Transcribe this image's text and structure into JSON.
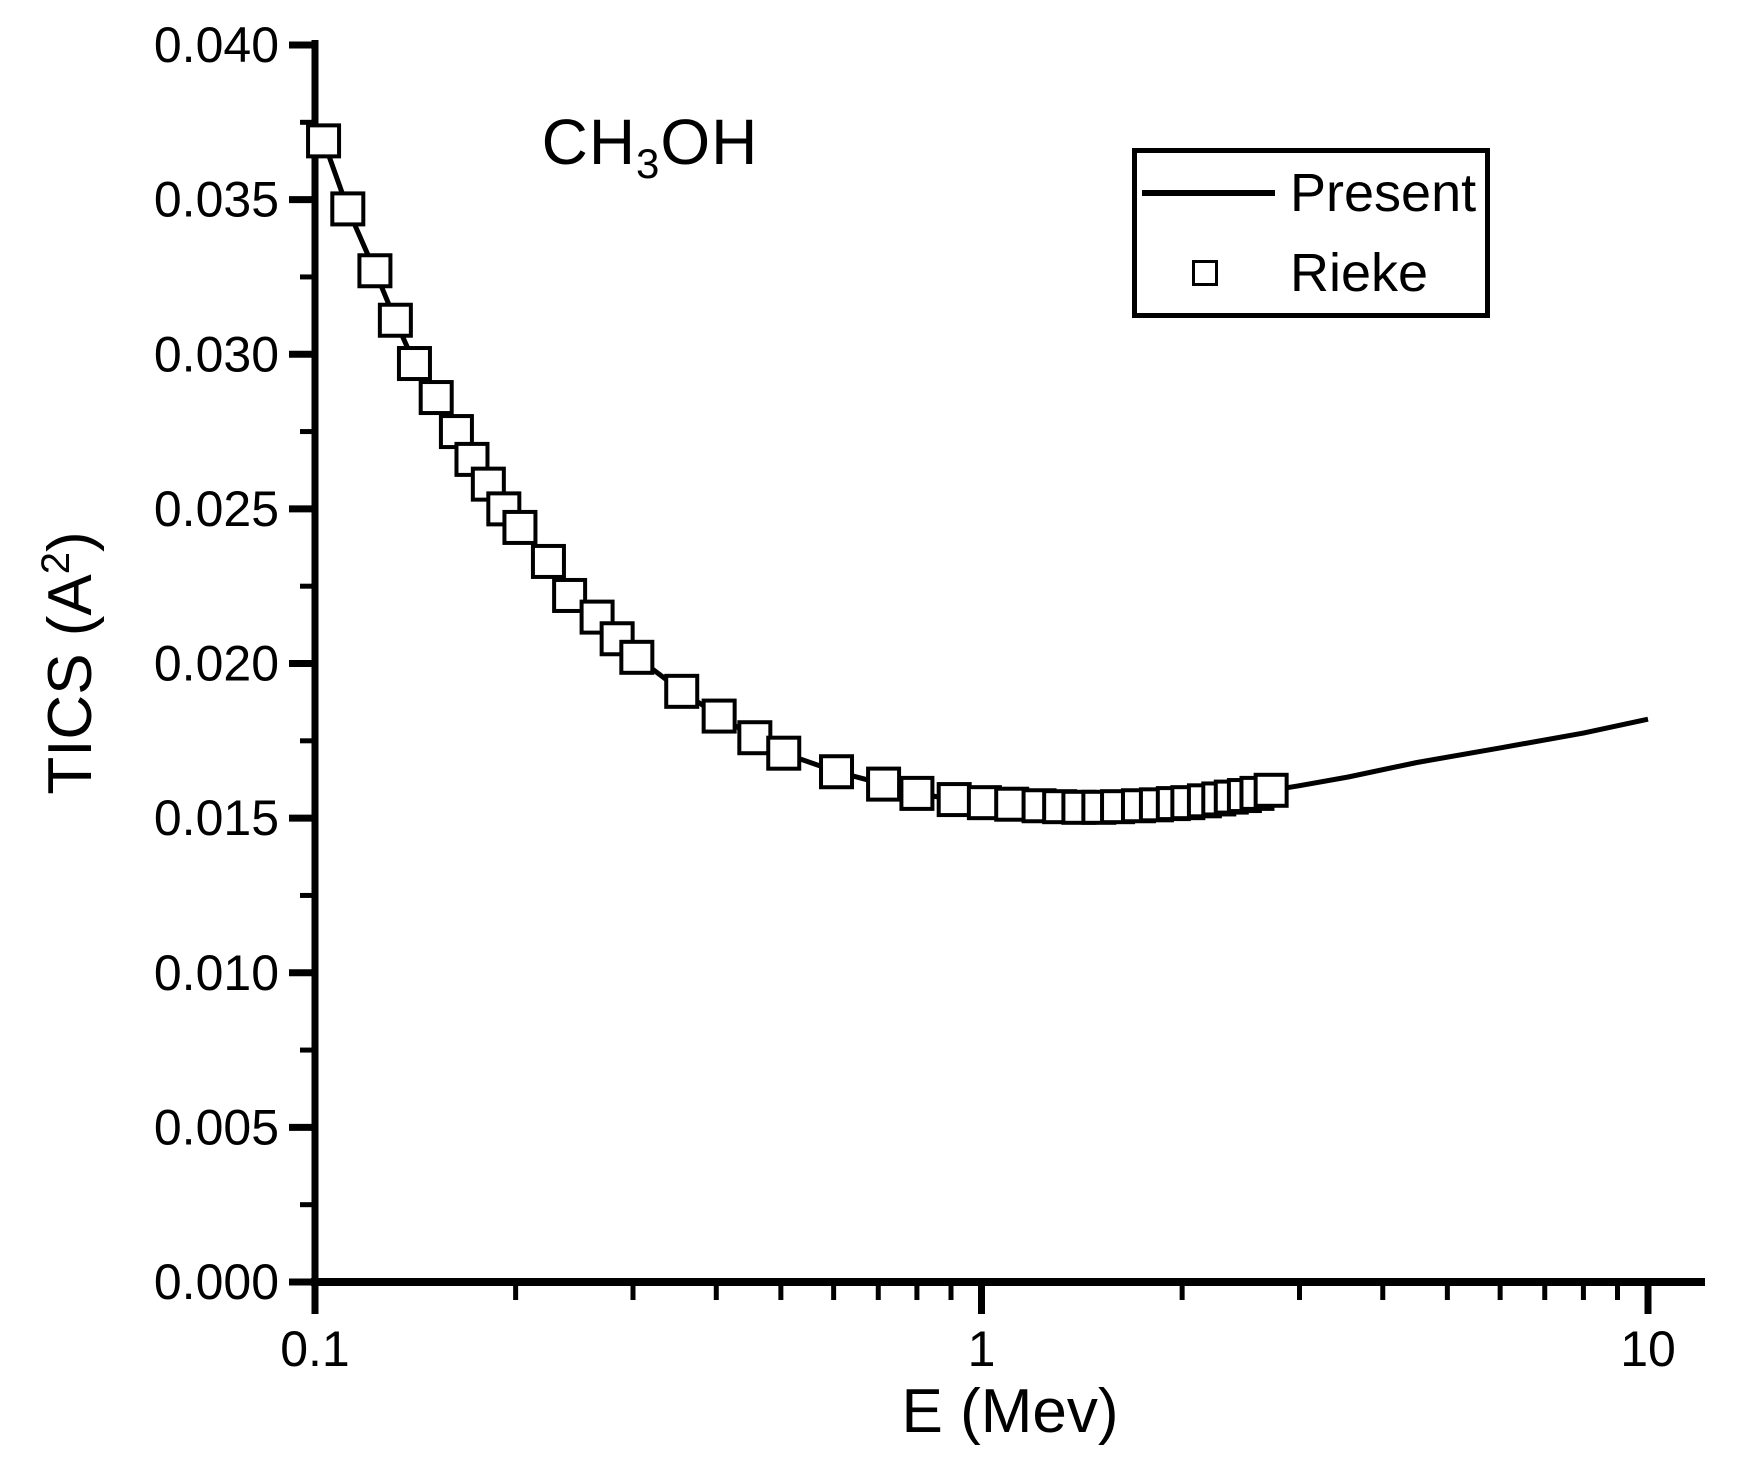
{
  "figure": {
    "background": "#ffffff",
    "ink": "#000000",
    "annotation": {
      "prefix": "CH",
      "sub": "3",
      "suffix": "OH"
    },
    "ylabel_parts": {
      "prefix": "TICS (A",
      "sup": "2",
      "suffix": ")"
    }
  },
  "chart_data": {
    "type": "line",
    "title": "",
    "annotation": "CH3OH",
    "xlabel": "E (Mev)",
    "ylabel": "TICS (A²)",
    "x_scale": "log",
    "y_scale": "linear",
    "xlim": [
      0.1,
      10
    ],
    "ylim": [
      0.0,
      0.04
    ],
    "grid": false,
    "x_major_ticks": [
      0.1,
      1,
      10
    ],
    "x_tick_labels": [
      "0.1",
      "1",
      "10"
    ],
    "x_minor_ticks": [
      0.2,
      0.3,
      0.4,
      0.5,
      0.6,
      0.7,
      0.8,
      0.9,
      2,
      3,
      4,
      5,
      6,
      7,
      8,
      9
    ],
    "y_major_ticks": [
      0.0,
      0.005,
      0.01,
      0.015,
      0.02,
      0.025,
      0.03,
      0.035,
      0.04
    ],
    "y_tick_labels": [
      "0.000",
      "0.005",
      "0.010",
      "0.015",
      "0.020",
      "0.025",
      "0.030",
      "0.035",
      "0.040"
    ],
    "y_minor_ticks": [
      0.0025,
      0.0075,
      0.0125,
      0.0175,
      0.0225,
      0.0275,
      0.0325,
      0.0375
    ],
    "legend": {
      "position": "top-right",
      "border": true
    },
    "series": [
      {
        "name": "Present",
        "type": "line",
        "color": "#000000",
        "line_width": 5,
        "points": [
          [
            0.1,
            0.037
          ],
          [
            0.103,
            0.0369
          ],
          [
            0.112,
            0.0347
          ],
          [
            0.123,
            0.0327
          ],
          [
            0.132,
            0.0311
          ],
          [
            0.141,
            0.0297
          ],
          [
            0.152,
            0.0286
          ],
          [
            0.163,
            0.0275
          ],
          [
            0.172,
            0.0266
          ],
          [
            0.182,
            0.0258
          ],
          [
            0.192,
            0.025
          ],
          [
            0.203,
            0.0244
          ],
          [
            0.224,
            0.0233
          ],
          [
            0.241,
            0.0222
          ],
          [
            0.265,
            0.0215
          ],
          [
            0.284,
            0.0208
          ],
          [
            0.304,
            0.0202
          ],
          [
            0.355,
            0.0191
          ],
          [
            0.404,
            0.0183
          ],
          [
            0.457,
            0.0176
          ],
          [
            0.505,
            0.0171
          ],
          [
            0.606,
            0.0165
          ],
          [
            0.713,
            0.0161
          ],
          [
            0.8,
            0.0158
          ],
          [
            0.91,
            0.0156
          ],
          [
            1.01,
            0.0155
          ],
          [
            1.11,
            0.01545
          ],
          [
            1.22,
            0.0154
          ],
          [
            1.31,
            0.01537
          ],
          [
            1.4,
            0.01535
          ],
          [
            1.5,
            0.01535
          ],
          [
            1.6,
            0.01537
          ],
          [
            1.72,
            0.0154
          ],
          [
            1.83,
            0.01543
          ],
          [
            1.94,
            0.01547
          ],
          [
            2.04,
            0.0155
          ],
          [
            2.16,
            0.01556
          ],
          [
            2.27,
            0.01562
          ],
          [
            2.37,
            0.01568
          ],
          [
            2.48,
            0.01573
          ],
          [
            2.59,
            0.0158
          ],
          [
            2.72,
            0.0159
          ],
          [
            3.0,
            0.01605
          ],
          [
            3.55,
            0.01633
          ],
          [
            4.5,
            0.0168
          ],
          [
            6.0,
            0.01727
          ],
          [
            8.0,
            0.01775
          ],
          [
            10.0,
            0.0182
          ]
        ]
      },
      {
        "name": "Rieke",
        "type": "scatter",
        "marker": "open-square",
        "color": "#000000",
        "marker_size": 31,
        "points": [
          [
            0.103,
            0.0369
          ],
          [
            0.112,
            0.0347
          ],
          [
            0.123,
            0.0327
          ],
          [
            0.132,
            0.0311
          ],
          [
            0.141,
            0.0297
          ],
          [
            0.152,
            0.0286
          ],
          [
            0.163,
            0.0275
          ],
          [
            0.172,
            0.0266
          ],
          [
            0.182,
            0.0258
          ],
          [
            0.192,
            0.025
          ],
          [
            0.203,
            0.0244
          ],
          [
            0.224,
            0.0233
          ],
          [
            0.241,
            0.0222
          ],
          [
            0.265,
            0.0215
          ],
          [
            0.284,
            0.0208
          ],
          [
            0.304,
            0.0202
          ],
          [
            0.355,
            0.0191
          ],
          [
            0.404,
            0.0183
          ],
          [
            0.457,
            0.0176
          ],
          [
            0.505,
            0.0171
          ],
          [
            0.606,
            0.0165
          ],
          [
            0.713,
            0.0161
          ],
          [
            0.8,
            0.0158
          ],
          [
            0.91,
            0.0156
          ],
          [
            1.01,
            0.0155
          ],
          [
            1.11,
            0.01545
          ],
          [
            1.22,
            0.0154
          ],
          [
            1.31,
            0.01537
          ],
          [
            1.4,
            0.01535
          ],
          [
            1.5,
            0.01535
          ],
          [
            1.6,
            0.01537
          ],
          [
            1.72,
            0.0154
          ],
          [
            1.83,
            0.01543
          ],
          [
            1.94,
            0.01547
          ],
          [
            2.04,
            0.0155
          ],
          [
            2.16,
            0.01556
          ],
          [
            2.27,
            0.01562
          ],
          [
            2.37,
            0.01568
          ],
          [
            2.48,
            0.01573
          ],
          [
            2.59,
            0.0158
          ],
          [
            2.72,
            0.0159
          ]
        ]
      }
    ]
  }
}
